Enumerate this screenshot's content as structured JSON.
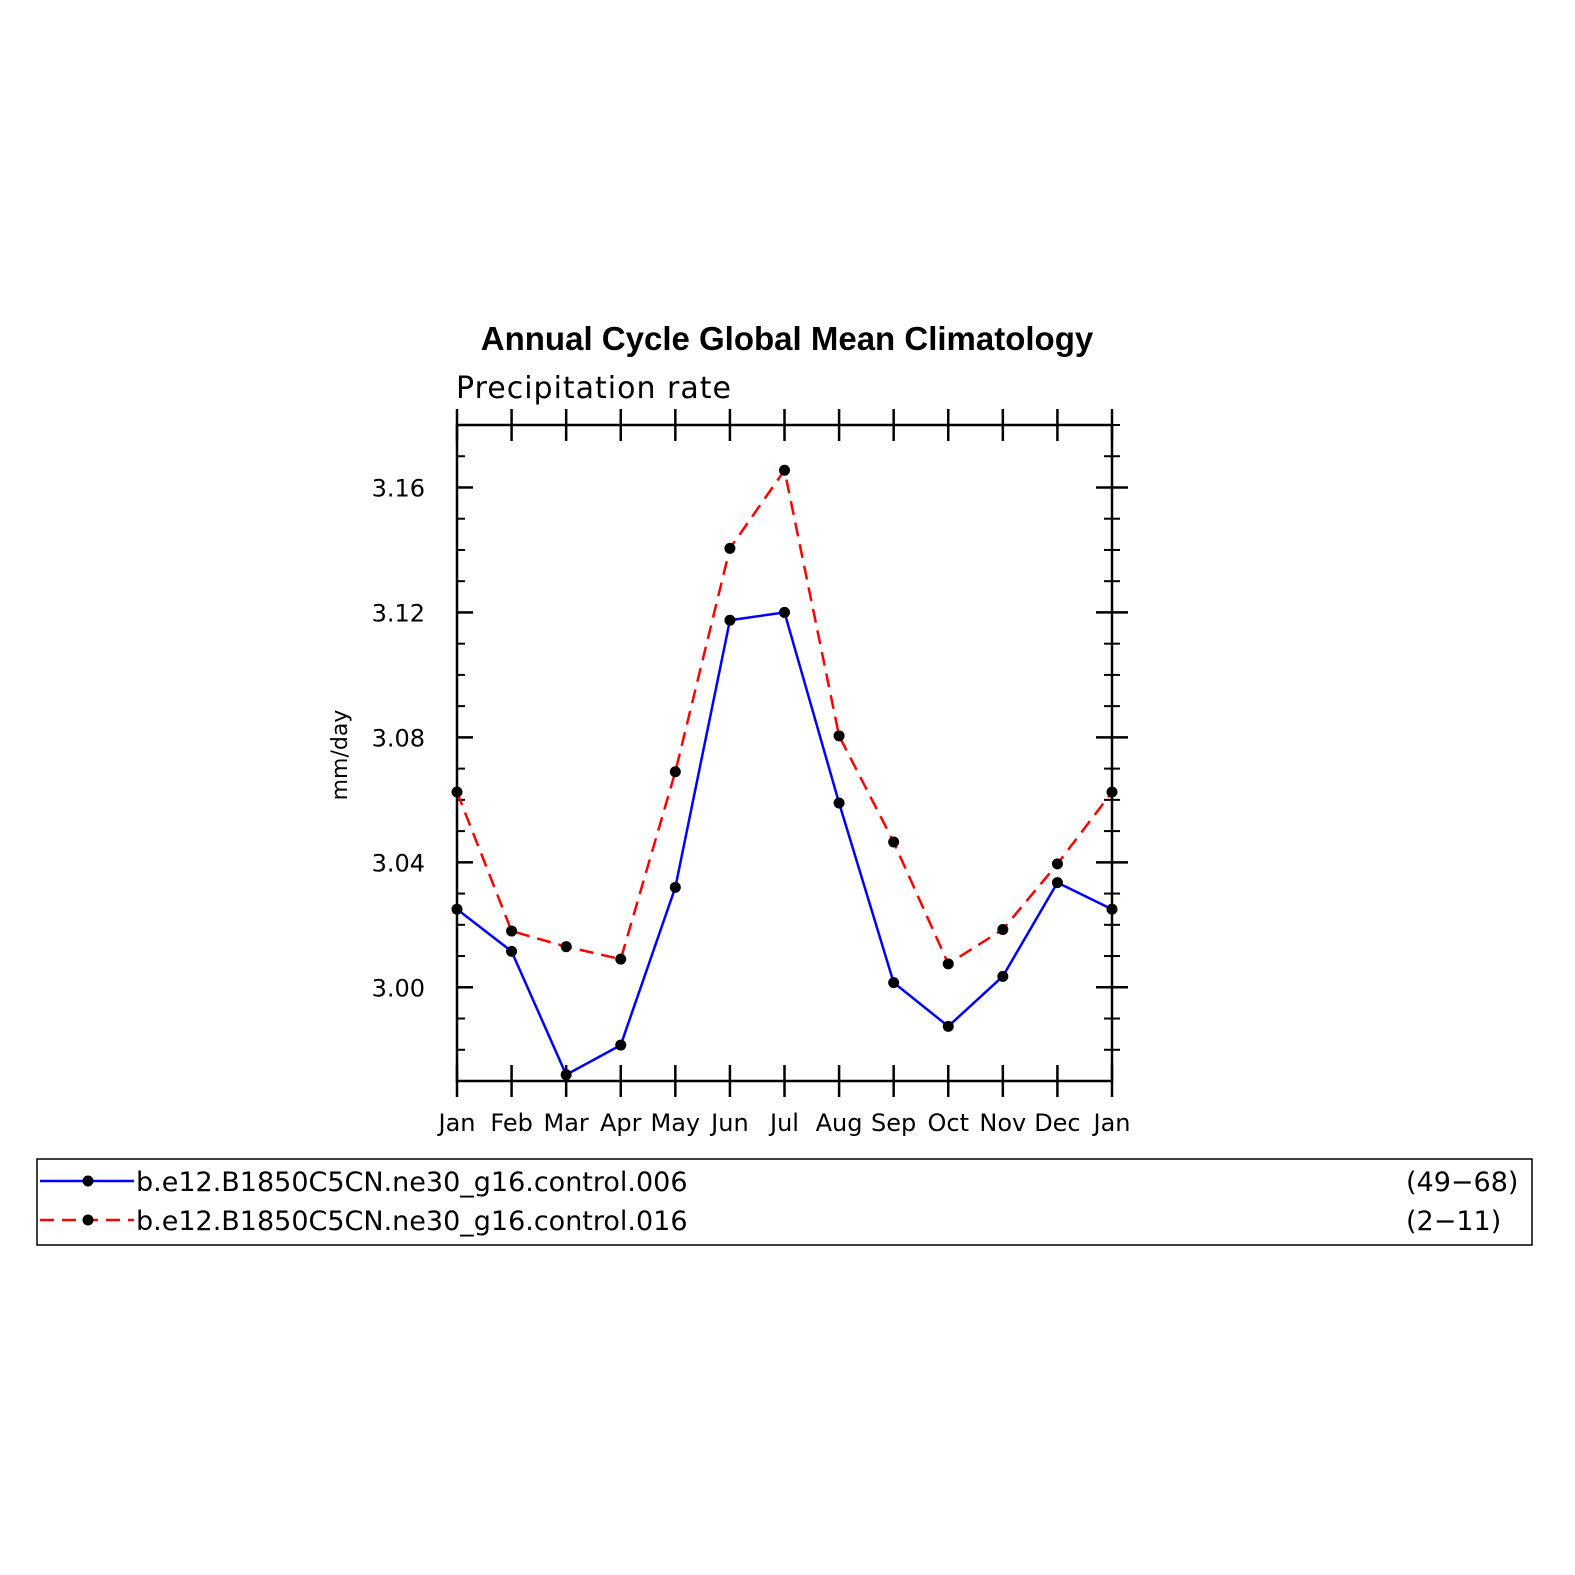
{
  "chart_data": {
    "type": "line",
    "title": "Annual Cycle Global Mean Climatology",
    "subtitle": "Precipitation rate",
    "xlabel": "",
    "ylabel": "mm/day",
    "categories": [
      "Jan",
      "Feb",
      "Mar",
      "Apr",
      "May",
      "Jun",
      "Jul",
      "Aug",
      "Sep",
      "Oct",
      "Nov",
      "Dec",
      "Jan"
    ],
    "ylim": [
      2.97,
      3.18
    ],
    "yticks": [
      3.0,
      3.04,
      3.08,
      3.12,
      3.16
    ],
    "ytick_labels": [
      "3.00",
      "3.04",
      "3.08",
      "3.12",
      "3.16"
    ],
    "grid": false,
    "legend_position": "bottom",
    "series": [
      {
        "name": "b.e12.B1850C5CN.ne30_g16.control.006",
        "years": "(49−68)",
        "color": "#0000ff",
        "dash": "solid",
        "values": [
          3.025,
          3.0115,
          2.972,
          2.9815,
          3.032,
          3.1175,
          3.12,
          3.059,
          3.0015,
          2.9875,
          3.0035,
          3.0335,
          3.025
        ]
      },
      {
        "name": "b.e12.B1850C5CN.ne30_g16.control.016",
        "years": "(2−11)",
        "color": "#ff0000",
        "dash": "dashed",
        "values": [
          3.0625,
          3.018,
          3.013,
          3.009,
          3.069,
          3.1405,
          3.1655,
          3.0805,
          3.0465,
          3.0075,
          3.0185,
          3.0395,
          3.0625
        ]
      }
    ],
    "marker_color": "#000000"
  }
}
